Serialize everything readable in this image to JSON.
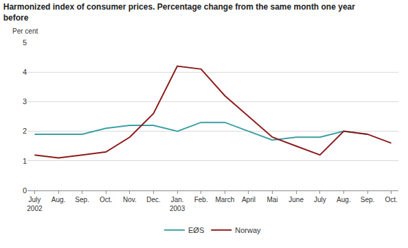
{
  "chart_data": {
    "type": "line",
    "title": "Harmonized index of consumer prices. Percentage change from the same month one year before",
    "ylabel": "Per cent",
    "categories": [
      "July 2002",
      "Aug.",
      "Sep.",
      "Oct.",
      "Nov.",
      "Dec.",
      "Jan. 2003",
      "Feb.",
      "March",
      "April",
      "Mai",
      "June",
      "July",
      "Aug.",
      "Sep.",
      "Oct."
    ],
    "series": [
      {
        "name": "EØS",
        "color": "#3a9fa3",
        "values": [
          1.9,
          1.9,
          1.9,
          2.1,
          2.2,
          2.2,
          2.0,
          2.3,
          2.3,
          2.0,
          1.7,
          1.8,
          1.8,
          2.0,
          1.9,
          null
        ]
      },
      {
        "name": "Norway",
        "color": "#8b1a1a",
        "values": [
          1.2,
          1.1,
          1.2,
          1.3,
          1.8,
          2.6,
          4.2,
          4.1,
          3.2,
          2.5,
          1.8,
          1.5,
          1.2,
          2.0,
          1.9,
          1.6
        ]
      }
    ],
    "ylim": [
      0,
      5
    ],
    "yticks": [
      0,
      1,
      2,
      3,
      4,
      5
    ],
    "grid": true,
    "legend": "bottom"
  }
}
